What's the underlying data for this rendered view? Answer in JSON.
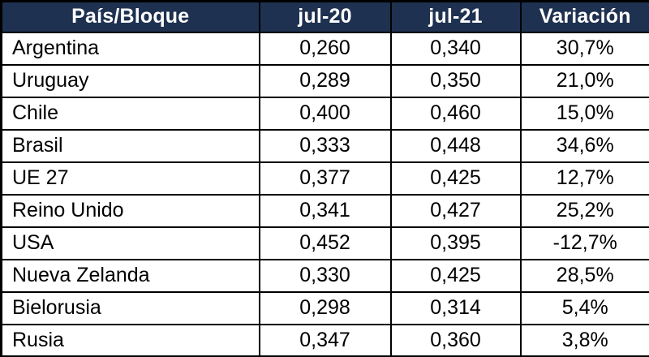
{
  "colors": {
    "header_bg": "#1e3150",
    "header_text": "#ffffff",
    "border": "#000000",
    "row_bg": "#ffffff",
    "row_text": "#000000"
  },
  "table": {
    "columns": [
      "País/Bloque",
      "jul-20",
      "jul-21",
      "Variación"
    ],
    "rows": [
      {
        "name": "Argentina",
        "jul20": "0,260",
        "jul21": "0,340",
        "variacion": "30,7%"
      },
      {
        "name": "Uruguay",
        "jul20": "0,289",
        "jul21": "0,350",
        "variacion": "21,0%"
      },
      {
        "name": "Chile",
        "jul20": "0,400",
        "jul21": "0,460",
        "variacion": "15,0%"
      },
      {
        "name": "Brasil",
        "jul20": "0,333",
        "jul21": "0,448",
        "variacion": "34,6%"
      },
      {
        "name": "UE 27",
        "jul20": "0,377",
        "jul21": "0,425",
        "variacion": "12,7%"
      },
      {
        "name": "Reino Unido",
        "jul20": "0,341",
        "jul21": "0,427",
        "variacion": "25,2%"
      },
      {
        "name": "USA",
        "jul20": "0,452",
        "jul21": "0,395",
        "variacion": "-12,7%"
      },
      {
        "name": "Nueva Zelanda",
        "jul20": "0,330",
        "jul21": "0,425",
        "variacion": "28,5%"
      },
      {
        "name": "Bielorusia",
        "jul20": "0,298",
        "jul21": "0,314",
        "variacion": "5,4%"
      },
      {
        "name": "Rusia",
        "jul20": "0,347",
        "jul21": "0,360",
        "variacion": "3,8%"
      }
    ]
  }
}
